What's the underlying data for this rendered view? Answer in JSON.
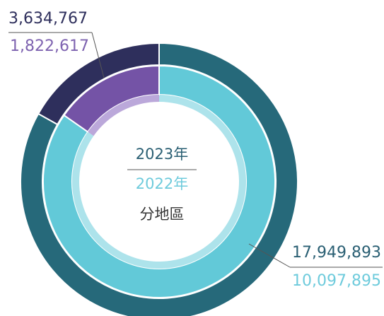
{
  "chart_data": {
    "type": "donut",
    "center_label": "分地區",
    "series": [
      {
        "name": "2023年",
        "color": "#2a6475",
        "colors": [
          "#26697a",
          "#2e2f5c"
        ],
        "values": [
          17949893,
          3634767
        ],
        "value_labels": [
          "17,949,893",
          "3,634,767"
        ]
      },
      {
        "name": "2022年",
        "color": "#5fc3d4",
        "colors": [
          "#62c9d8",
          "#7453a6"
        ],
        "light_colors": [
          "#ade3eb",
          "#bba8da"
        ],
        "values": [
          10097895,
          1822617
        ],
        "value_labels": [
          "10,097,895",
          "1,822,617"
        ]
      }
    ]
  }
}
